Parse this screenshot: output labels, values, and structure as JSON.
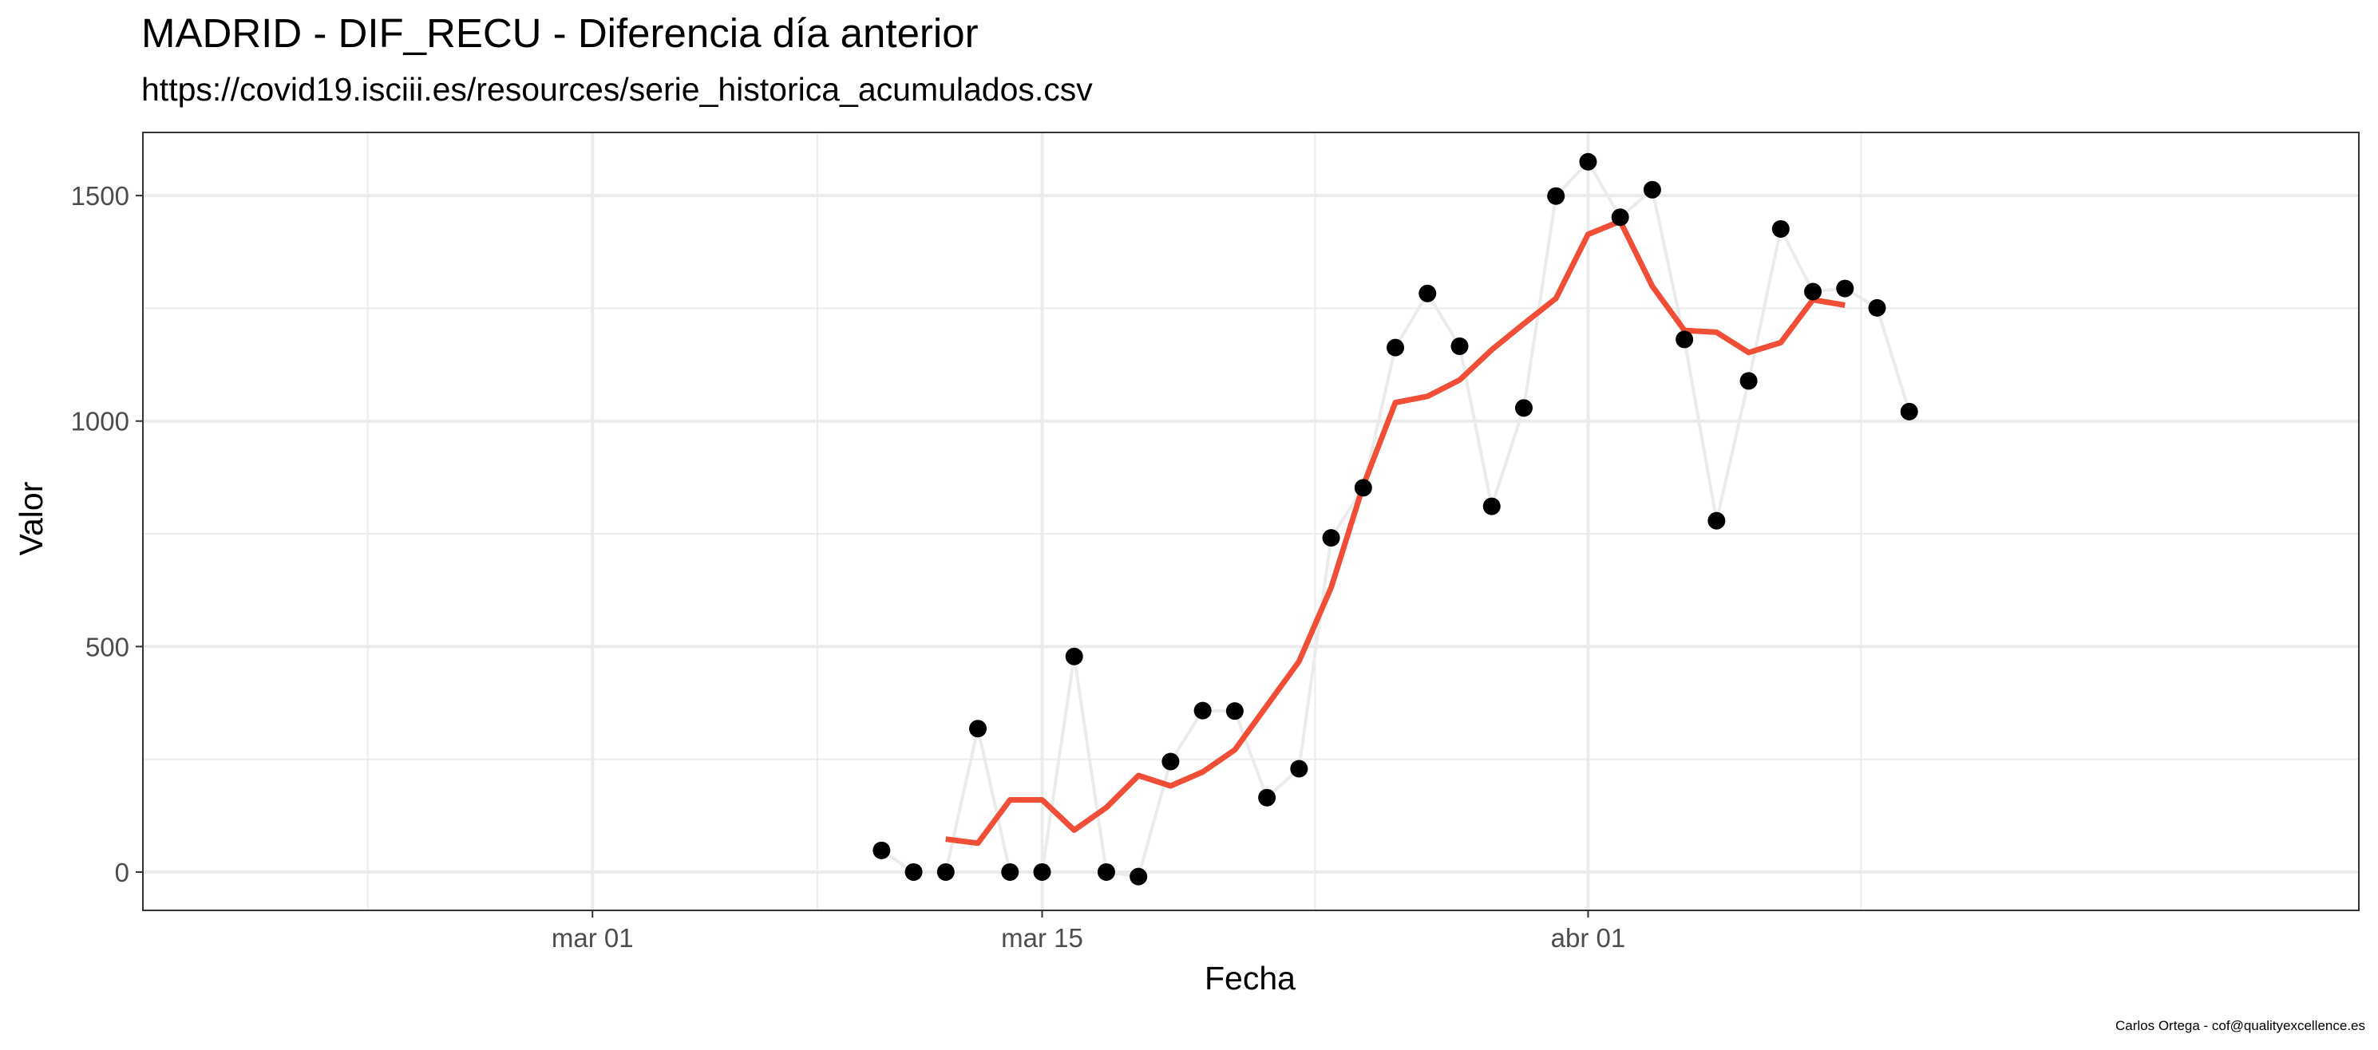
{
  "chart_data": {
    "type": "line",
    "title": "MADRID - DIF_RECU - Diferencia día anterior",
    "subtitle": "https://covid19.isciii.es/resources/serie_historica_acumulados.csv",
    "caption": "Carlos Ortega - cof@qualityexcellence.es",
    "xlabel": "Fecha",
    "ylabel": "Valor",
    "x_type": "date",
    "xlim": [
      "2020-02-16",
      "2020-04-25"
    ],
    "ylim": [
      -85,
      1640
    ],
    "x_ticks": [
      {
        "date": "2020-03-01",
        "label": "mar 01"
      },
      {
        "date": "2020-03-15",
        "label": "mar 15"
      },
      {
        "date": "2020-04-01",
        "label": "abr 01"
      }
    ],
    "y_ticks": [
      0,
      500,
      1000,
      1500
    ],
    "grid": true,
    "legend": "none",
    "series": [
      {
        "kind": "observed",
        "line_color": "#ebebeb",
        "point_color": "#000000",
        "x": [
          "2020-03-10",
          "2020-03-11",
          "2020-03-12",
          "2020-03-13",
          "2020-03-14",
          "2020-03-15",
          "2020-03-16",
          "2020-03-17",
          "2020-03-18",
          "2020-03-19",
          "2020-03-20",
          "2020-03-21",
          "2020-03-22",
          "2020-03-23",
          "2020-03-24",
          "2020-03-25",
          "2020-03-26",
          "2020-03-27",
          "2020-03-28",
          "2020-03-29",
          "2020-03-30",
          "2020-03-31",
          "2020-04-01",
          "2020-04-02",
          "2020-04-03",
          "2020-04-04",
          "2020-04-05",
          "2020-04-06",
          "2020-04-07",
          "2020-04-08",
          "2020-04-09",
          "2020-04-10",
          "2020-04-11"
        ],
        "y": [
          48,
          0,
          0,
          318,
          0,
          0,
          478,
          0,
          -10,
          245,
          358,
          357,
          165,
          229,
          741,
          852,
          1163,
          1283,
          1166,
          811,
          1029,
          1499,
          1575,
          1452,
          1513,
          1181,
          779,
          1089,
          1426,
          1287,
          1294,
          1251,
          1021
        ]
      },
      {
        "kind": "smoothed",
        "line_color": "#f04e37",
        "x": [
          "2020-03-12",
          "2020-03-13",
          "2020-03-14",
          "2020-03-15",
          "2020-03-16",
          "2020-03-17",
          "2020-03-18",
          "2020-03-19",
          "2020-03-20",
          "2020-03-21",
          "2020-03-22",
          "2020-03-23",
          "2020-03-24",
          "2020-03-25",
          "2020-03-26",
          "2020-03-27",
          "2020-03-28",
          "2020-03-29",
          "2020-03-30",
          "2020-03-31",
          "2020-04-01",
          "2020-04-02",
          "2020-04-03",
          "2020-04-04",
          "2020-04-05",
          "2020-04-06",
          "2020-04-07",
          "2020-04-08",
          "2020-04-09"
        ],
        "y": [
          73,
          64,
          160,
          160,
          93,
          143,
          214,
          191,
          222,
          271,
          369,
          467,
          631,
          857,
          1041,
          1055,
          1091,
          1158,
          1216,
          1272,
          1414,
          1443,
          1299,
          1201,
          1197,
          1152,
          1174,
          1269,
          1257
        ]
      }
    ]
  }
}
